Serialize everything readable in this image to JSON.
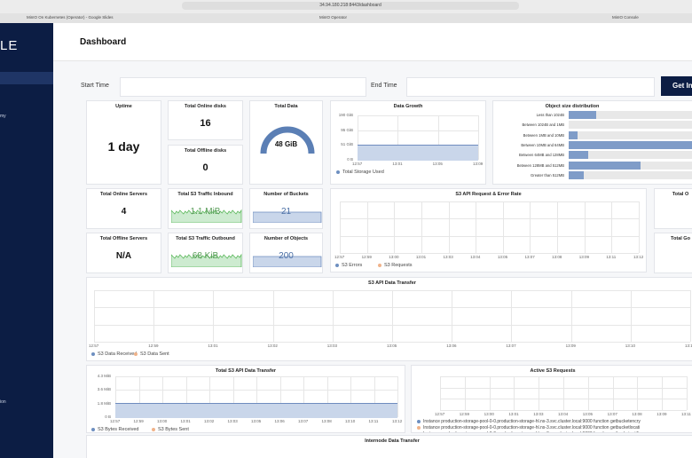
{
  "browser": {
    "url": "34.94.180.218:8443/dashboard",
    "tabs": [
      "MinIO On Kubernetes (Operator) - Google Slides",
      "MinIO Operator",
      "MinIO Console"
    ]
  },
  "sidebar": {
    "logo": "LE",
    "items": [
      "my",
      "ion"
    ]
  },
  "header": {
    "title": "Dashboard"
  },
  "filters": {
    "start": "Start Time",
    "end": "End Time",
    "button": "Get In"
  },
  "stats": [
    {
      "label": "Uptime",
      "value": "1 day"
    },
    {
      "label": "Total Online disks",
      "value": "16"
    },
    {
      "label": "Total Offline disks",
      "value": "0"
    },
    {
      "label": "Total Data",
      "value": "48 GiB"
    },
    {
      "label": "Total Online Servers",
      "value": "4"
    },
    {
      "label": "Total S3 Traffic Inbound",
      "value": "1.1 MiB"
    },
    {
      "label": "Number of Buckets",
      "value": "21"
    },
    {
      "label": "Total Offline Servers",
      "value": "N/A"
    },
    {
      "label": "Total S3 Traffic Outbound",
      "value": "68 KiB"
    },
    {
      "label": "Number of Objects",
      "value": "200"
    },
    {
      "label": "Total O"
    },
    {
      "label": "Total Go"
    }
  ],
  "charts": [
    {
      "title": "Data Growth",
      "yticks": [
        "190 GiB",
        "95 GiB",
        "51 GiB",
        "0 B"
      ],
      "xticks": [
        "12:57",
        "13:01",
        "13:05",
        "13:09"
      ],
      "legend": [
        "Total Storage Used"
      ]
    },
    {
      "title": "S3 API Request & Error Rate",
      "xticks": [
        "12:57",
        "12:59",
        "13:00",
        "13:01",
        "13:03",
        "13:04",
        "13:05",
        "13:07",
        "13:08",
        "13:09",
        "13:11",
        "13:12"
      ],
      "legend": [
        "S3 Errors",
        "S3 Requests"
      ]
    },
    {
      "title": "S3 API Data Transfer",
      "xticks": [
        "12:57",
        "12:59",
        "13:01",
        "13:02",
        "13:03",
        "13:05",
        "13:06",
        "13:07",
        "13:09",
        "13:10",
        "13:11"
      ],
      "legend": [
        "S3 Data Received",
        "S3 Data Sent"
      ]
    },
    {
      "title": "Total S3 API Data Transfer",
      "yticks": [
        "4.3 MiB",
        "3.6 MiB",
        "1.8 MiB",
        "0 B"
      ],
      "xticks": [
        "12:57",
        "12:59",
        "13:00",
        "13:01",
        "13:02",
        "13:03",
        "13:05",
        "13:06",
        "13:07",
        "13:08",
        "13:10",
        "13:11",
        "13:12"
      ],
      "legend": [
        "S3 Bytes Received",
        "S3 Bytes Sent"
      ]
    },
    {
      "title": "Active S3 Requests",
      "xticks": [
        "12:57",
        "12:59",
        "13:00",
        "13:01",
        "13:03",
        "13:04",
        "13:05",
        "13:07",
        "13:08",
        "13:09",
        "13:11"
      ],
      "legend": [
        "Instance production-storage-pool-0-0.production-storage-hl.ns-3.svc.cluster.local:9000 function getbucketencry",
        "Instance production-storage-pool-0-0.production-storage-hl.ns-3.svc.cluster.local:9000 function getbucketlocati",
        "Instance production-storage-pool-0-0.production-storage-hl.ns-3.svc.cluster.local:9000 function getbucketnotifi"
      ]
    }
  ],
  "object_size": {
    "title": "Object size distribution",
    "labels": [
      "Less than 1024B",
      "Between 1024B and 1MB",
      "Between 1MB and 10MB",
      "Between 10MB and 64MB",
      "Between 64MB and 128MB",
      "Between 128MB and 512MB",
      "Greater than 512MB"
    ],
    "values": [
      22,
      0,
      7,
      100,
      16,
      58,
      12
    ]
  },
  "internode": {
    "title": "Internode Data Transfer"
  }
}
